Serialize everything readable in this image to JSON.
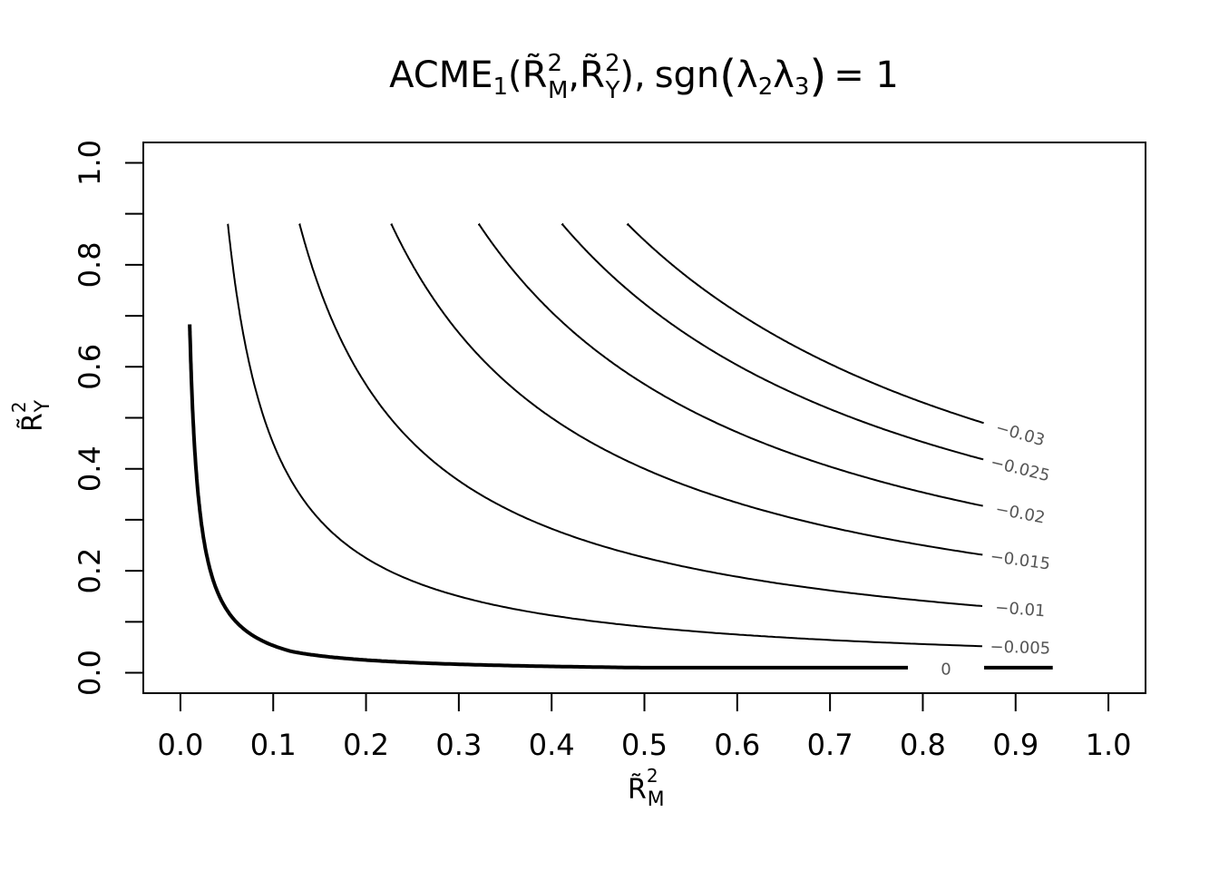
{
  "chart_data": {
    "type": "contour",
    "title": {
      "main": "ACME",
      "main_sub": "1",
      "arg_open": "(",
      "r": "R̃",
      "sq": "2",
      "m": "M",
      "sep": ",",
      "y": "Y",
      "arg_close": "),",
      "sgn": "sgn",
      "lambda": "λ",
      "l2": "2",
      "l3": "3",
      "eq": "= 1"
    },
    "xlabel": {
      "r": "R̃",
      "sq": "2",
      "sub": "M"
    },
    "ylabel": {
      "r": "R̃",
      "sq": "2",
      "sub": "Y"
    },
    "xlim": [
      -0.04,
      1.04
    ],
    "ylim": [
      -0.04,
      1.04
    ],
    "x_ticks": [
      "0.0",
      "0.1",
      "0.2",
      "0.3",
      "0.4",
      "0.5",
      "0.6",
      "0.7",
      "0.8",
      "0.9",
      "1.0"
    ],
    "y_ticks": [
      "0.0",
      "0.2",
      "0.4",
      "0.6",
      "0.8",
      "1.0"
    ],
    "y_minor_ticks": [
      0.1,
      0.3,
      0.5,
      0.7,
      0.9
    ],
    "grid": false,
    "x_range": [
      0.01,
      0.94
    ],
    "y_range": [
      0.01,
      0.88
    ],
    "contours": [
      {
        "level": 0,
        "label": "0",
        "products": [
          0.007,
          0.005
        ],
        "bold": true
      },
      {
        "level": -0.005,
        "label": "−0.005",
        "products": [
          0.045
        ]
      },
      {
        "level": -0.01,
        "label": "−0.01",
        "products": [
          0.113
        ]
      },
      {
        "level": -0.015,
        "label": "−0.015",
        "products": [
          0.2
        ]
      },
      {
        "level": -0.02,
        "label": "−0.02",
        "products": [
          0.283
        ]
      },
      {
        "level": -0.025,
        "label": "−0.025",
        "products": [
          0.362
        ]
      },
      {
        "level": -0.03,
        "label": "−0.03",
        "products": [
          0.424
        ]
      }
    ]
  }
}
